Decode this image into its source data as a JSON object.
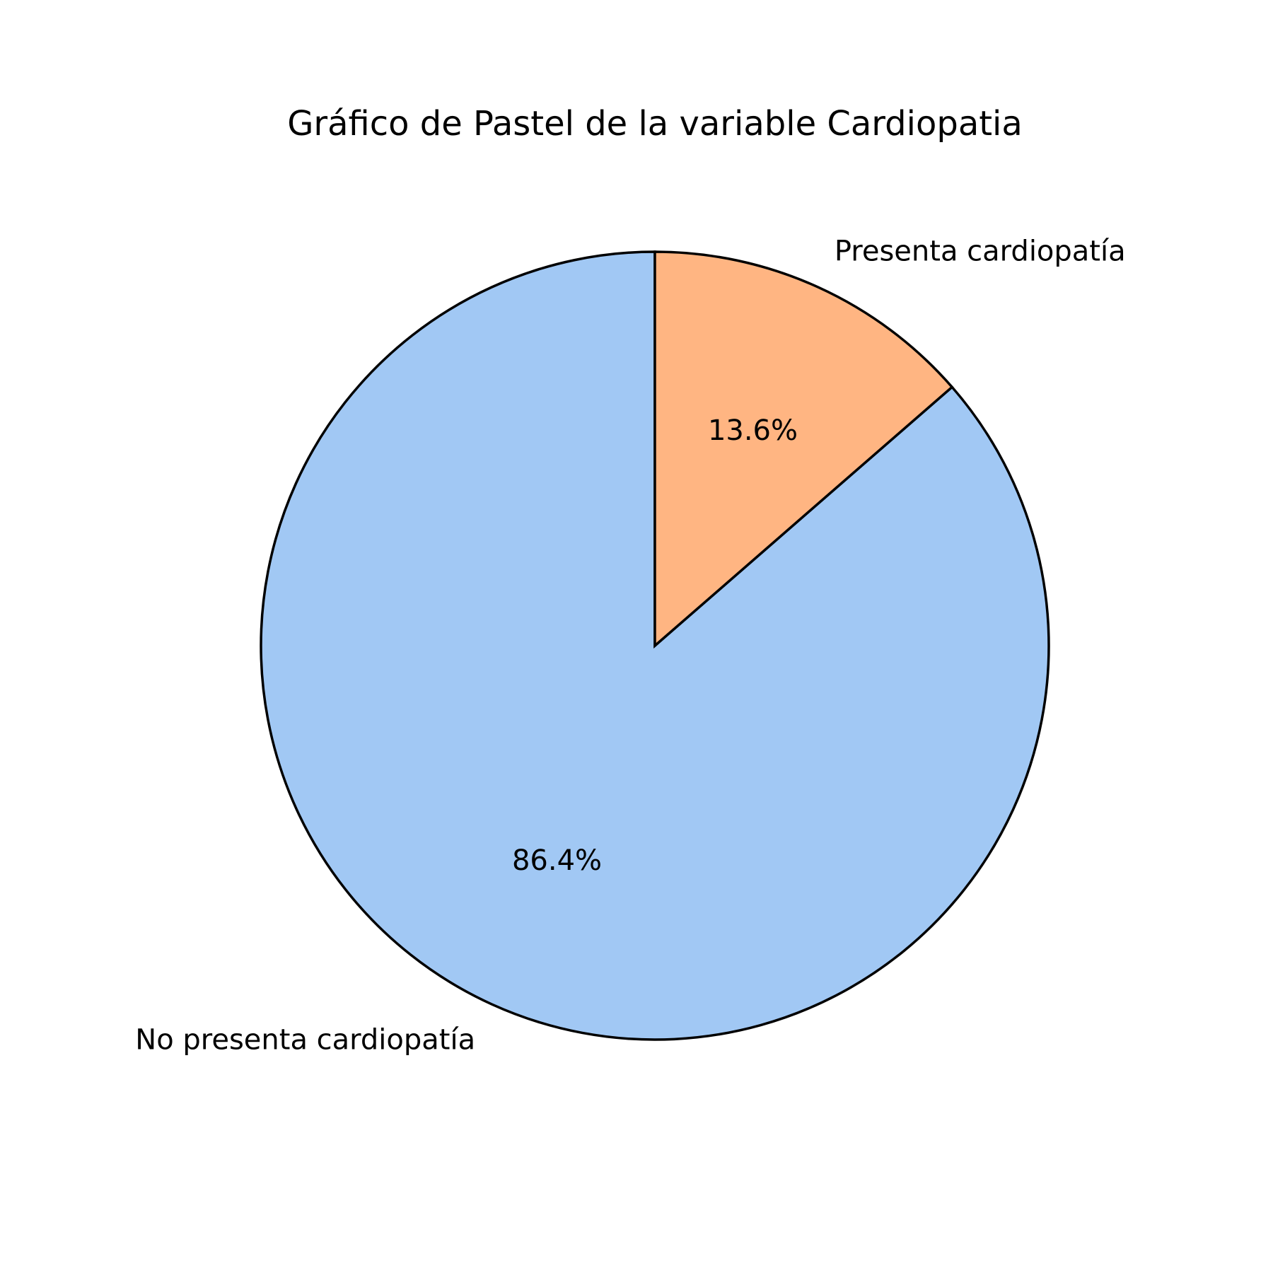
{
  "chart_data": {
    "type": "pie",
    "title": "Gráfico de Pastel de la variable Cardiopatia",
    "start_angle": "top (12 o'clock), counterclockwise",
    "slices": [
      {
        "label": "No presenta cardiopatía",
        "value": 86.4,
        "pct_label": "86.4%",
        "color": "#a1c8f4"
      },
      {
        "label": "Presenta cardiopatía",
        "value": 13.6,
        "pct_label": "13.6%",
        "color": "#ffb582"
      }
    ],
    "edge_color": "#000000"
  }
}
